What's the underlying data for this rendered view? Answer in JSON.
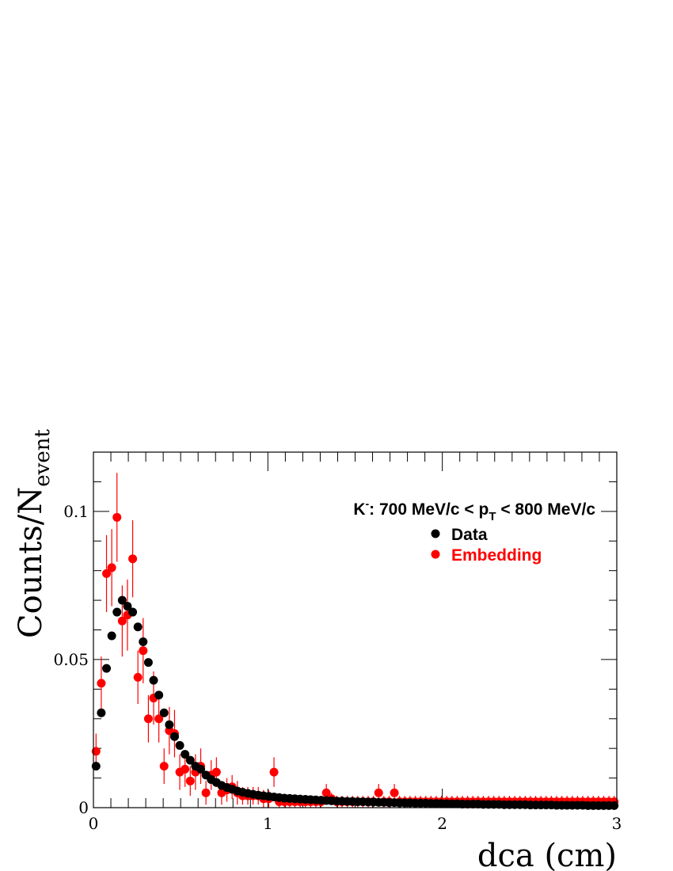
{
  "colors": {
    "data": "#000000",
    "embedding": "#ff0000"
  },
  "chart_data": {
    "type": "scatter",
    "title_parts": {
      "particle": "K",
      "charge": "-",
      "prefix": ": 700 MeV/c < p",
      "subscript": "T",
      "suffix": " < 800 MeV/c"
    },
    "xlabel": "dca (cm)",
    "ylabel_parts": {
      "main": "Counts/N",
      "subscript": "event"
    },
    "xlim": [
      0,
      3
    ],
    "ylim": [
      0,
      0.12
    ],
    "xticks": [
      {
        "v": 0,
        "label": "0"
      },
      {
        "v": 1,
        "label": "1"
      },
      {
        "v": 2,
        "label": "2"
      },
      {
        "v": 3,
        "label": "3"
      }
    ],
    "yticks": [
      {
        "v": 0,
        "label": "0"
      },
      {
        "v": 0.05,
        "label": "0.05"
      },
      {
        "v": 0.1,
        "label": "0.1"
      }
    ],
    "legend": {
      "position": "top-right",
      "entries": [
        {
          "label": "Data",
          "series": "data"
        },
        {
          "label": "Embedding",
          "series": "embedding"
        }
      ]
    },
    "series": [
      {
        "name": "Data",
        "key": "data",
        "x": [
          0.015,
          0.045,
          0.075,
          0.105,
          0.135,
          0.165,
          0.195,
          0.225,
          0.255,
          0.285,
          0.315,
          0.345,
          0.375,
          0.405,
          0.435,
          0.465,
          0.495,
          0.525,
          0.555,
          0.585,
          0.615,
          0.645,
          0.675,
          0.705,
          0.735,
          0.765,
          0.795,
          0.825,
          0.855,
          0.885,
          0.915,
          0.945,
          0.975,
          1.005,
          1.035,
          1.065,
          1.095,
          1.125,
          1.155,
          1.185,
          1.215,
          1.245,
          1.275,
          1.305,
          1.335,
          1.365,
          1.395,
          1.425,
          1.455,
          1.485,
          1.515,
          1.545,
          1.575,
          1.605,
          1.635,
          1.665,
          1.695,
          1.725,
          1.755,
          1.785,
          1.815,
          1.845,
          1.875,
          1.905,
          1.935,
          1.965,
          1.995,
          2.025,
          2.055,
          2.085,
          2.115,
          2.145,
          2.175,
          2.205,
          2.235,
          2.265,
          2.295,
          2.325,
          2.355,
          2.385,
          2.415,
          2.445,
          2.475,
          2.505,
          2.535,
          2.565,
          2.595,
          2.625,
          2.655,
          2.685,
          2.715,
          2.745,
          2.775,
          2.805,
          2.835,
          2.865,
          2.895,
          2.925,
          2.955,
          2.985
        ],
        "y": [
          0.014,
          0.032,
          0.047,
          0.058,
          0.066,
          0.07,
          0.068,
          0.066,
          0.061,
          0.056,
          0.049,
          0.043,
          0.038,
          0.032,
          0.028,
          0.024,
          0.021,
          0.018,
          0.016,
          0.014,
          0.013,
          0.011,
          0.0095,
          0.0085,
          0.0075,
          0.0068,
          0.0062,
          0.0056,
          0.0052,
          0.0048,
          0.0045,
          0.0042,
          0.004,
          0.0038,
          0.0036,
          0.0034,
          0.0032,
          0.0031,
          0.003,
          0.0029,
          0.0028,
          0.0027,
          0.0026,
          0.0025,
          0.0024,
          0.0023,
          0.0022,
          0.0022,
          0.0021,
          0.0021,
          0.002,
          0.002,
          0.0019,
          0.0019,
          0.0018,
          0.0018,
          0.0017,
          0.0017,
          0.0016,
          0.0016,
          0.0016,
          0.0015,
          0.0015,
          0.0015,
          0.0014,
          0.0014,
          0.0014,
          0.0013,
          0.0013,
          0.0013,
          0.0012,
          0.0012,
          0.0012,
          0.0012,
          0.0011,
          0.0011,
          0.0011,
          0.0011,
          0.001,
          0.001,
          0.001,
          0.001,
          0.001,
          0.0009,
          0.0009,
          0.0009,
          0.0009,
          0.0009,
          0.0008,
          0.0008,
          0.0008,
          0.0008,
          0.0008,
          0.0008,
          0.0007,
          0.0007,
          0.0007,
          0.0007,
          0.0007,
          0.0007
        ]
      },
      {
        "name": "Embedding",
        "key": "embedding",
        "x": [
          0.015,
          0.045,
          0.075,
          0.105,
          0.135,
          0.165,
          0.195,
          0.225,
          0.255,
          0.285,
          0.315,
          0.345,
          0.375,
          0.405,
          0.435,
          0.465,
          0.495,
          0.525,
          0.555,
          0.585,
          0.615,
          0.645,
          0.675,
          0.705,
          0.735,
          0.765,
          0.795,
          0.825,
          0.855,
          0.885,
          0.915,
          0.945,
          0.975,
          1.005,
          1.035,
          1.065,
          1.095,
          1.125,
          1.155,
          1.185,
          1.215,
          1.245,
          1.275,
          1.305,
          1.335,
          1.365,
          1.395,
          1.425,
          1.455,
          1.485,
          1.515,
          1.545,
          1.575,
          1.605,
          1.635,
          1.665,
          1.695,
          1.725,
          1.755,
          1.785,
          1.815,
          1.845,
          1.875,
          1.905,
          1.935,
          1.965,
          1.995,
          2.025,
          2.055,
          2.085,
          2.115,
          2.145,
          2.175,
          2.205,
          2.235,
          2.265,
          2.295,
          2.325,
          2.355,
          2.385,
          2.415,
          2.445,
          2.475,
          2.505,
          2.535,
          2.565,
          2.595,
          2.625,
          2.655,
          2.685,
          2.715,
          2.745,
          2.775,
          2.805,
          2.835,
          2.865,
          2.895,
          2.925,
          2.955,
          2.985
        ],
        "y": [
          0.019,
          0.042,
          0.079,
          0.081,
          0.098,
          0.063,
          0.065,
          0.084,
          0.044,
          0.053,
          0.03,
          0.037,
          0.03,
          0.014,
          0.026,
          0.025,
          0.012,
          0.013,
          0.009,
          0.012,
          0.014,
          0.005,
          0.011,
          0.012,
          0.005,
          0.006,
          0.007,
          0.005,
          0.004,
          0.004,
          0.004,
          0.004,
          0.003,
          0.003,
          0.012,
          0.002,
          0.002,
          0.002,
          0.002,
          0.002,
          0.002,
          0.002,
          0.002,
          0.002,
          0.005,
          0.003,
          0.002,
          0.002,
          0.002,
          0.002,
          0.002,
          0.002,
          0.002,
          0.002,
          0.005,
          0.002,
          0.002,
          0.005,
          0.002,
          0.002,
          0.002,
          0.002,
          0.002,
          0.002,
          0.002,
          0.002,
          0.002,
          0.002,
          0.002,
          0.002,
          0.002,
          0.002,
          0.002,
          0.002,
          0.002,
          0.002,
          0.002,
          0.002,
          0.002,
          0.002,
          0.002,
          0.002,
          0.002,
          0.002,
          0.002,
          0.002,
          0.002,
          0.002,
          0.002,
          0.002,
          0.002,
          0.002,
          0.002,
          0.002,
          0.002,
          0.002,
          0.002,
          0.002,
          0.002,
          0.002
        ],
        "yerr": [
          0.006,
          0.009,
          0.013,
          0.013,
          0.015,
          0.012,
          0.012,
          0.013,
          0.009,
          0.011,
          0.008,
          0.009,
          0.008,
          0.006,
          0.008,
          0.008,
          0.006,
          0.006,
          0.005,
          0.006,
          0.006,
          0.004,
          0.005,
          0.005,
          0.004,
          0.004,
          0.004,
          0.004,
          0.003,
          0.003,
          0.003,
          0.003,
          0.003,
          0.003,
          0.005,
          0.002,
          0.002,
          0.002,
          0.002,
          0.002,
          0.002,
          0.002,
          0.002,
          0.002,
          0.003,
          0.002,
          0.002,
          0.002,
          0.002,
          0.002,
          0.002,
          0.002,
          0.002,
          0.002,
          0.003,
          0.002,
          0.002,
          0.003,
          0.002,
          0.002,
          0.002,
          0.002,
          0.002,
          0.002,
          0.002,
          0.002,
          0.002,
          0.002,
          0.002,
          0.002,
          0.002,
          0.002,
          0.002,
          0.002,
          0.002,
          0.002,
          0.002,
          0.002,
          0.002,
          0.002,
          0.002,
          0.002,
          0.002,
          0.002,
          0.002,
          0.002,
          0.002,
          0.002,
          0.002,
          0.002,
          0.002,
          0.002,
          0.002,
          0.002,
          0.002,
          0.002,
          0.002,
          0.002,
          0.002,
          0.002
        ]
      }
    ]
  }
}
